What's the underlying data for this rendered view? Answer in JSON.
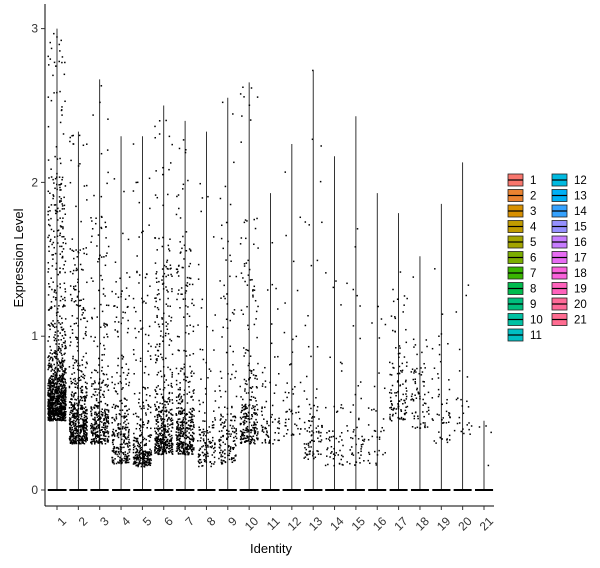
{
  "chart_data": {
    "type": "violin-jitter",
    "xlabel": "Identity",
    "ylabel": "Expression Level",
    "ylim": [
      -0.15,
      3.08
    ],
    "y_ticks": [
      0,
      1,
      2,
      3
    ],
    "categories": [
      "1",
      "2",
      "3",
      "4",
      "5",
      "6",
      "7",
      "8",
      "9",
      "10",
      "11",
      "12",
      "13",
      "14",
      "15",
      "16",
      "17",
      "18",
      "19",
      "20",
      "21"
    ],
    "max_values": [
      3.0,
      2.33,
      2.67,
      2.3,
      2.3,
      2.5,
      2.4,
      2.33,
      2.55,
      2.65,
      1.93,
      2.25,
      2.73,
      2.17,
      2.43,
      1.93,
      1.8,
      1.52,
      1.86,
      2.13,
      0.45
    ],
    "cluster_center": [
      0.6,
      0.45,
      0.45,
      0.32,
      0.22,
      0.38,
      0.38,
      0.3,
      0.32,
      0.45,
      0.45,
      0.5,
      0.35,
      0.3,
      0.3,
      0.3,
      0.6,
      0.55,
      0.45,
      0.5,
      0.3
    ],
    "point_counts": [
      1100,
      560,
      360,
      280,
      300,
      460,
      420,
      130,
      170,
      260,
      70,
      50,
      90,
      55,
      50,
      35,
      110,
      75,
      50,
      25,
      4
    ],
    "legend": {
      "placement": "right",
      "columns": 2,
      "items": [
        {
          "label": "1",
          "color": "#F8766D"
        },
        {
          "label": "2",
          "color": "#EA8331"
        },
        {
          "label": "3",
          "color": "#D89000"
        },
        {
          "label": "4",
          "color": "#C09B00"
        },
        {
          "label": "5",
          "color": "#A3A500"
        },
        {
          "label": "6",
          "color": "#7CAE00"
        },
        {
          "label": "7",
          "color": "#39B600"
        },
        {
          "label": "8",
          "color": "#00BB4E"
        },
        {
          "label": "9",
          "color": "#00BF7D"
        },
        {
          "label": "10",
          "color": "#00C1A3"
        },
        {
          "label": "11",
          "color": "#00BFC4"
        },
        {
          "label": "12",
          "color": "#00BAE0"
        },
        {
          "label": "13",
          "color": "#00B0F6"
        },
        {
          "label": "14",
          "color": "#35A2FF"
        },
        {
          "label": "15",
          "color": "#9590FF"
        },
        {
          "label": "16",
          "color": "#C77CFF"
        },
        {
          "label": "17",
          "color": "#E76BF3"
        },
        {
          "label": "18",
          "color": "#FA62DB"
        },
        {
          "label": "19",
          "color": "#FF62BC"
        },
        {
          "label": "20",
          "color": "#FF6A98"
        },
        {
          "label": "21",
          "color": "#FF6C91"
        }
      ]
    }
  }
}
